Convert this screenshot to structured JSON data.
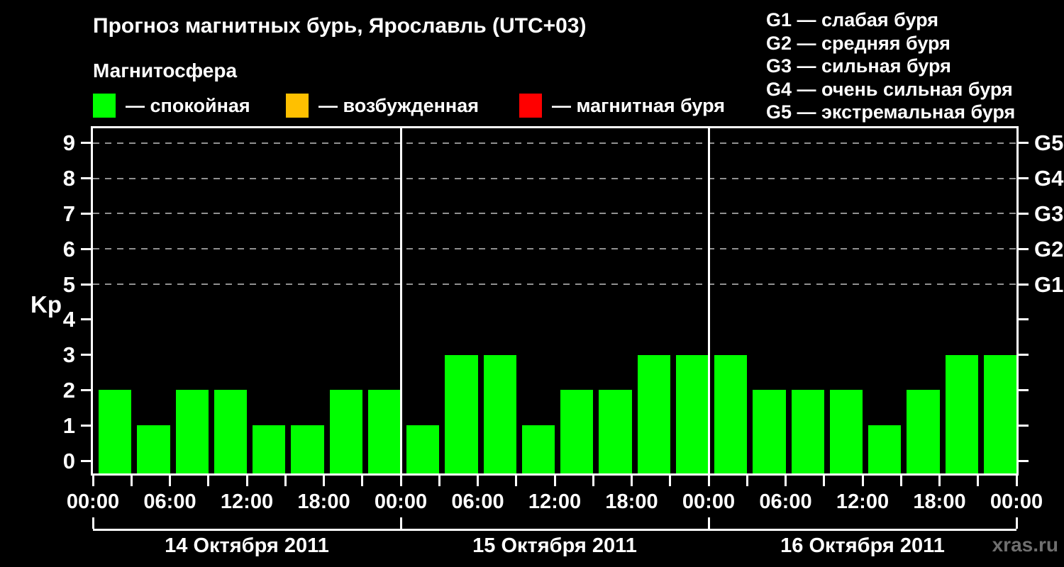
{
  "title": "Прогноз магнитных бурь, Ярославль (UTC+03)",
  "subtitle": "Магнитосфера",
  "legend": [
    {
      "label": "— спокойная",
      "color": "#00ff00"
    },
    {
      "label": "— возбужденная",
      "color": "#ffc000"
    },
    {
      "label": "— магнитная буря",
      "color": "#ff0000"
    }
  ],
  "storm_scale": [
    "G1 — слабая буря",
    "G2 — средняя буря",
    "G3 — сильная буря",
    "G4 — очень сильная буря",
    "G5 — экстремальная буря"
  ],
  "watermark": "xras.ru",
  "chart_data": {
    "type": "bar",
    "title": "Прогноз магнитных бурь, Ярославль (UTC+03)",
    "ylabel": "Kp",
    "ylim": [
      0,
      9
    ],
    "yticks": [
      0,
      1,
      2,
      3,
      4,
      5,
      6,
      7,
      8,
      9
    ],
    "gridlines_at": [
      5,
      6,
      7,
      8,
      9
    ],
    "grid": "dashed horizontal lines at storm levels only",
    "legend_position": "top",
    "right_axis": [
      {
        "value": 5,
        "label": "G1"
      },
      {
        "value": 6,
        "label": "G2"
      },
      {
        "value": 7,
        "label": "G3"
      },
      {
        "value": 8,
        "label": "G4"
      },
      {
        "value": 9,
        "label": "G5"
      }
    ],
    "bar_color": "#00ff00",
    "hours_per_bar": 3,
    "x_tick_labels_cycle": [
      "00:00",
      "06:00",
      "12:00",
      "18:00"
    ],
    "x_axis_end_label": "00:00",
    "days": [
      {
        "date": "14 Октября 2011",
        "values": [
          2,
          1,
          2,
          2,
          1,
          1,
          2,
          2
        ]
      },
      {
        "date": "15 Октября 2011",
        "values": [
          1,
          3,
          3,
          1,
          2,
          2,
          3,
          3
        ]
      },
      {
        "date": "16 Октября 2011",
        "values": [
          3,
          2,
          2,
          2,
          1,
          2,
          3,
          3
        ]
      }
    ]
  }
}
